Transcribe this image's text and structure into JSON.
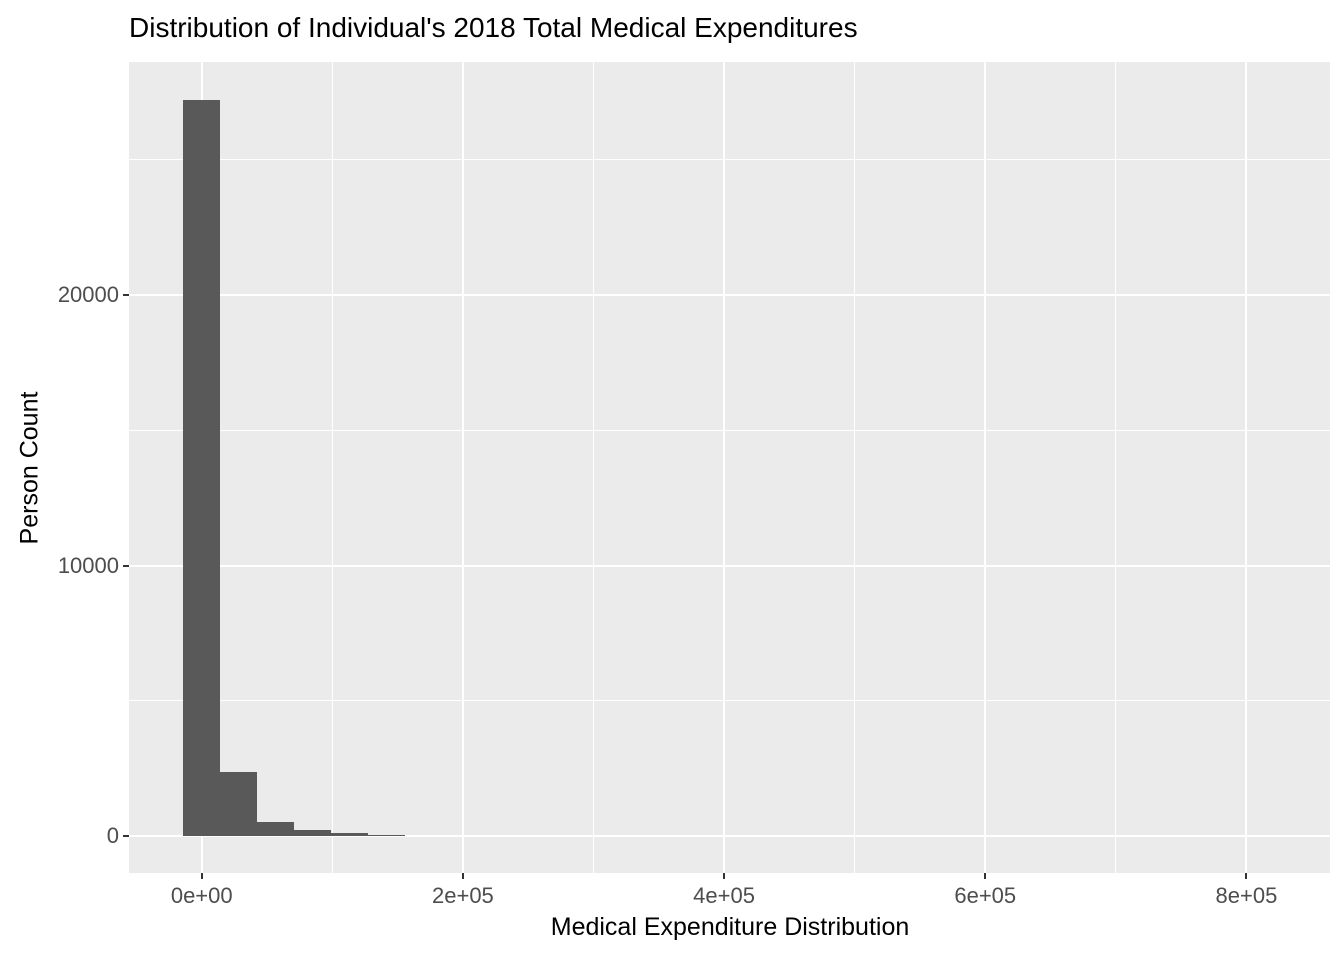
{
  "chart_data": {
    "type": "bar",
    "subtype": "histogram",
    "title": "Distribution of Individual's 2018 Total Medical Expenditures",
    "xlabel": "Medical Expenditure Distribution",
    "ylabel": "Person Count",
    "bin_width": 28333,
    "bins": [
      {
        "center": 0,
        "count": 27200
      },
      {
        "center": 28333,
        "count": 2370
      },
      {
        "center": 56667,
        "count": 520
      },
      {
        "center": 85000,
        "count": 230
      },
      {
        "center": 113333,
        "count": 120
      },
      {
        "center": 141667,
        "count": 50
      }
    ],
    "x_domain": [
      -55700,
      864000
    ],
    "y_domain": [
      -1370,
      28620
    ],
    "x_ticks": {
      "values": [
        0,
        200000,
        400000,
        600000,
        800000
      ],
      "labels": [
        "0e+00",
        "2e+05",
        "4e+05",
        "6e+05",
        "8e+05"
      ],
      "minor": [
        100000,
        300000,
        500000,
        700000
      ]
    },
    "y_ticks": {
      "values": [
        0,
        10000,
        20000
      ],
      "labels": [
        "0",
        "10000",
        "20000"
      ],
      "minor": [
        5000,
        15000,
        25000
      ]
    },
    "grid": true,
    "legend_position": "none",
    "colors": {
      "bar": "#595959",
      "panel_bg": "#EBEBEB",
      "gridline": "#FFFFFF",
      "tick_text": "#4D4D4D",
      "tick_mark": "#333333",
      "title_text": "#000000",
      "figure_bg": "#FFFFFF"
    }
  }
}
